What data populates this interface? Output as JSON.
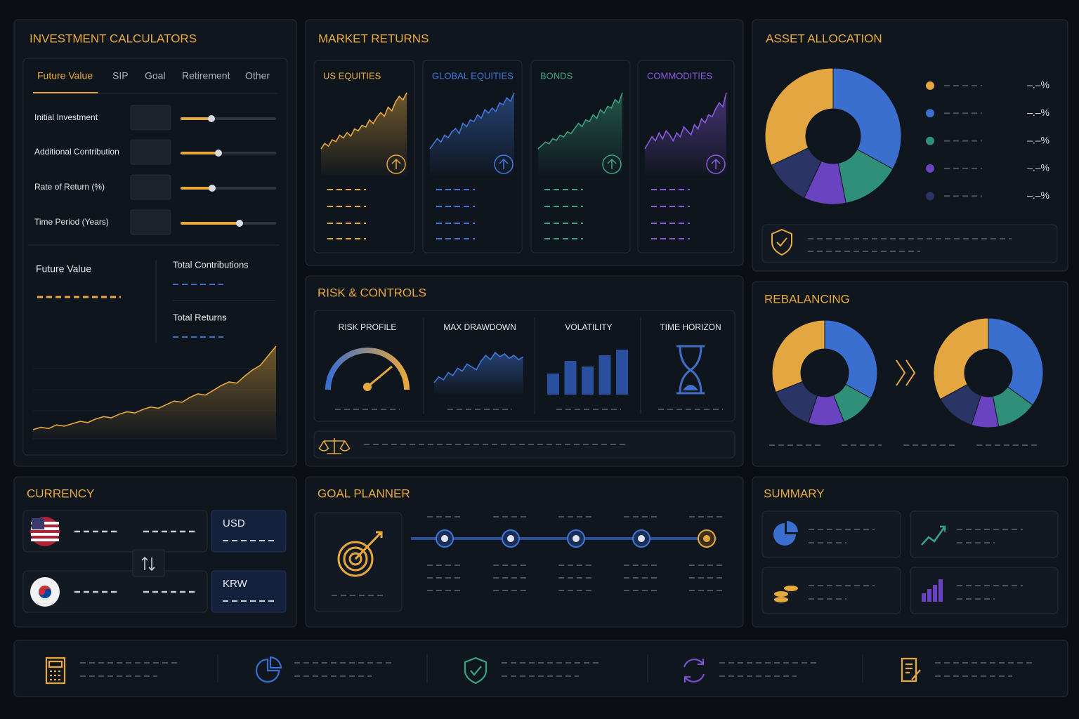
{
  "panels": {
    "calculators": {
      "title": "INVESTMENT CALCULATORS",
      "tabs": [
        "Future Value",
        "SIP",
        "Goal",
        "Retirement",
        "Other"
      ],
      "fields": [
        "Initial Investment",
        "Additional Contribution",
        "Rate of Return (%)",
        "Time Period (Years)"
      ],
      "results": [
        "Future Value",
        "Total Contributions",
        "Total Returns"
      ],
      "growth": [
        8,
        10,
        9,
        12,
        11,
        13,
        15,
        14,
        17,
        19,
        18,
        21,
        23,
        22,
        25,
        27,
        26,
        29,
        32,
        31,
        35,
        38,
        37,
        41,
        45,
        48,
        47,
        53,
        58,
        62,
        70,
        78
      ]
    },
    "market": {
      "title": "MARKET RETURNS",
      "cards": [
        {
          "name": "US EQUITIES",
          "color": "#e8a93c",
          "values": [
            20,
            26,
            23,
            30,
            28,
            35,
            32,
            38,
            34,
            42,
            40,
            46,
            44,
            52,
            48,
            55,
            60,
            56,
            66,
            62,
            72,
            78,
            74,
            82
          ]
        },
        {
          "name": "GLOBAL EQUITIES",
          "color": "#3f78dc",
          "values": [
            18,
            24,
            30,
            26,
            34,
            31,
            38,
            42,
            36,
            48,
            44,
            52,
            50,
            58,
            54,
            64,
            60,
            66,
            62,
            72,
            70,
            78,
            74,
            84
          ]
        },
        {
          "name": "BONDS",
          "color": "#3aa37f",
          "values": [
            16,
            20,
            24,
            22,
            28,
            26,
            32,
            30,
            36,
            34,
            40,
            46,
            42,
            50,
            48,
            56,
            52,
            62,
            58,
            66,
            64,
            74,
            70,
            82
          ]
        },
        {
          "name": "COMMODITIES",
          "color": "#8a5ae0",
          "values": [
            22,
            28,
            34,
            30,
            38,
            32,
            40,
            36,
            30,
            38,
            34,
            44,
            40,
            36,
            46,
            42,
            52,
            48,
            56,
            54,
            62,
            68,
            64,
            78
          ]
        }
      ]
    },
    "allocation": {
      "title": "ASSET ALLOCATION",
      "colors": [
        "#3a6fd0",
        "#2f8f78",
        "#6a44c0",
        "#2a3566",
        "#e3a640"
      ],
      "values": [
        33,
        14,
        10,
        11,
        32
      ],
      "labels": [
        "–.–%",
        "–.–%",
        "–.–%",
        "–.–%",
        "–.–%"
      ],
      "legend_order": [
        4,
        0,
        1,
        2,
        3
      ]
    },
    "risk": {
      "title": "RISK & CONTROLS",
      "items": [
        "RISK PROFILE",
        "MAX DRAWDOWN",
        "VOLATILITY",
        "TIME HORIZON"
      ],
      "drawdown": [
        20,
        28,
        24,
        34,
        30,
        40,
        36,
        46,
        42,
        38,
        50,
        58,
        52,
        62,
        56,
        60,
        54,
        58,
        52,
        56
      ],
      "volatility": [
        30,
        48,
        40,
        56,
        64
      ]
    },
    "rebalancing": {
      "title": "REBALANCING",
      "colors": [
        "#3a6fd0",
        "#2f8f78",
        "#6a44c0",
        "#2a3566",
        "#e3a640"
      ],
      "before": [
        33,
        11,
        11,
        14,
        31
      ],
      "after": [
        35,
        12,
        8,
        12,
        33
      ]
    },
    "currency": {
      "title": "CURRENCY",
      "codes": [
        "USD",
        "KRW"
      ]
    },
    "goal": {
      "title": "GOAL PLANNER"
    },
    "summary": {
      "title": "SUMMARY"
    }
  }
}
